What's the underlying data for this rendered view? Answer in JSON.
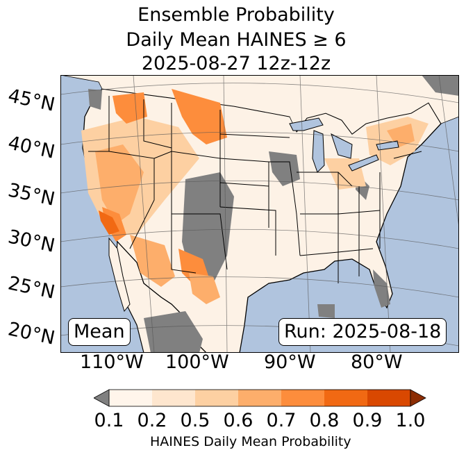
{
  "title": {
    "line1": "Ensemble Probability",
    "line2": "Daily Mean HAINES ≥ 6",
    "line3": "2025-08-27 12z-12z"
  },
  "map": {
    "label_left": "Mean",
    "label_right": "Run: 2025-08-18",
    "ocean_color": "#b0c4de",
    "land_color": "#fdf2e6",
    "missing_color": "#808080",
    "lat_labels": [
      "45°N",
      "40°N",
      "35°N",
      "30°N",
      "25°N",
      "20°N"
    ],
    "lon_labels": [
      "110°W",
      "100°W",
      "90°W",
      "80°W"
    ]
  },
  "colorbar": {
    "title": "HAINES Daily Mean Probability",
    "ticks": [
      "0.1",
      "0.2",
      "0.5",
      "0.6",
      "0.7",
      "0.8",
      "0.9",
      "1.0"
    ],
    "colors": [
      "#fff5eb",
      "#fee6ce",
      "#fdd0a2",
      "#fdae6b",
      "#fd8d3c",
      "#f16913",
      "#d94801",
      "#8c2d04"
    ],
    "under_color": "#808080"
  }
}
